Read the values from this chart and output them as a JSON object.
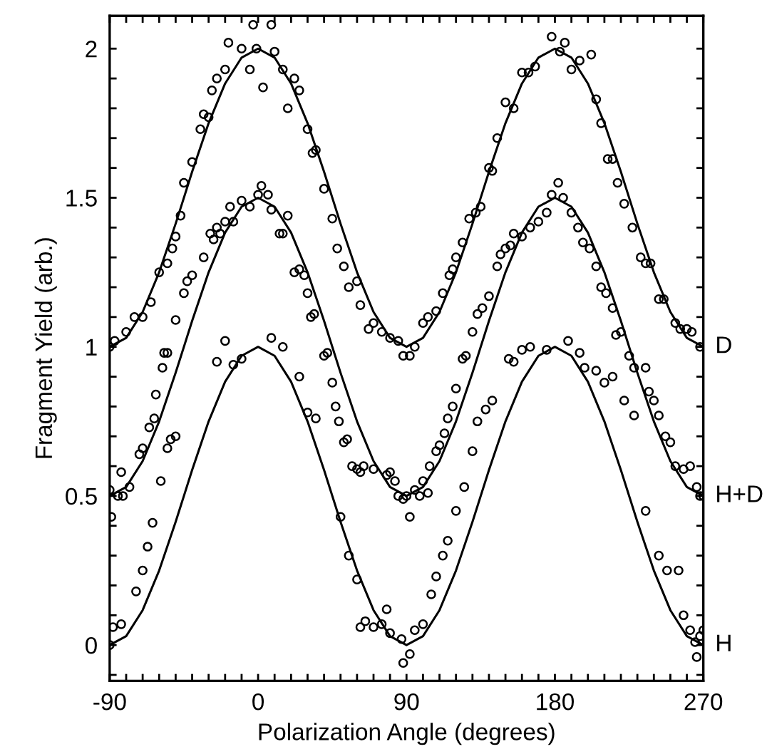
{
  "chart_data": {
    "type": "scatter",
    "xlabel": "Polarization Angle (degrees)",
    "ylabel": "Fragment Yield (arb.)",
    "xlim": [
      -90,
      270
    ],
    "ylim": [
      -0.12,
      2.11
    ],
    "xticks": [
      -90,
      {
        "value": -80,
        "label": null
      },
      {
        "value": -70,
        "label": null
      },
      {
        "value": -60,
        "label": null
      },
      {
        "value": -50,
        "label": null
      },
      {
        "value": -40,
        "label": null
      },
      {
        "value": -30,
        "label": null
      },
      {
        "value": -20,
        "label": null
      },
      {
        "value": -10,
        "label": null
      },
      0,
      {
        "value": 10,
        "label": null
      },
      {
        "value": 20,
        "label": null
      },
      {
        "value": 30,
        "label": null
      },
      {
        "value": 40,
        "label": null
      },
      {
        "value": 50,
        "label": null
      },
      {
        "value": 60,
        "label": null
      },
      {
        "value": 70,
        "label": null
      },
      {
        "value": 80,
        "label": null
      },
      90,
      {
        "value": 100,
        "label": null
      },
      {
        "value": 110,
        "label": null
      },
      {
        "value": 120,
        "label": null
      },
      {
        "value": 130,
        "label": null
      },
      {
        "value": 140,
        "label": null
      },
      {
        "value": 150,
        "label": null
      },
      {
        "value": 160,
        "label": null
      },
      {
        "value": 170,
        "label": null
      },
      180,
      {
        "value": 190,
        "label": null
      },
      {
        "value": 200,
        "label": null
      },
      {
        "value": 210,
        "label": null
      },
      {
        "value": 220,
        "label": null
      },
      {
        "value": 230,
        "label": null
      },
      {
        "value": 240,
        "label": null
      },
      {
        "value": 250,
        "label": null
      },
      {
        "value": 260,
        "label": null
      },
      270
    ],
    "yticks": [
      {
        "value": -0.1,
        "label": null
      },
      0,
      {
        "value": 0.1,
        "label": null
      },
      {
        "value": 0.2,
        "label": null
      },
      {
        "value": 0.3,
        "label": null
      },
      {
        "value": 0.4,
        "label": null
      },
      0.5,
      {
        "value": 0.6,
        "label": null
      },
      {
        "value": 0.7,
        "label": null
      },
      {
        "value": 0.8,
        "label": null
      },
      {
        "value": 0.9,
        "label": null
      },
      1,
      {
        "value": 1.1,
        "label": null
      },
      {
        "value": 1.2,
        "label": null
      },
      {
        "value": 1.3,
        "label": null
      },
      {
        "value": 1.4,
        "label": null
      },
      1.5,
      {
        "value": 1.6,
        "label": null
      },
      {
        "value": 1.7,
        "label": null
      },
      {
        "value": 1.8,
        "label": null
      },
      {
        "value": 1.9,
        "label": null
      },
      2
    ],
    "grid": false,
    "legend": "right",
    "marker": "circle",
    "series": [
      {
        "color": "#000000",
        "x": [
          -90,
          -87,
          -80,
          -75,
          -70,
          -65,
          -60,
          -55,
          -52,
          -50,
          -47,
          -45,
          -40,
          -35,
          -33,
          -30,
          -28,
          -25,
          -20,
          -18,
          -10,
          -5,
          -3,
          -1,
          3,
          8,
          10,
          15,
          18,
          22,
          25,
          30,
          33,
          35,
          40,
          45,
          48,
          52,
          55,
          60,
          62,
          67,
          70,
          75,
          80,
          85,
          88,
          92,
          95,
          100,
          103,
          108,
          112,
          116,
          118,
          120,
          124,
          128,
          132,
          135,
          140,
          142,
          145,
          150,
          155,
          160,
          164,
          168,
          178,
          183,
          186,
          190,
          195,
          202,
          205,
          208,
          212,
          215,
          218,
          222,
          227,
          232,
          235,
          238,
          243,
          246,
          253,
          256,
          260,
          263,
          268
        ],
        "values": [
          1.0,
          1.02,
          1.05,
          1.1,
          1.1,
          1.15,
          1.25,
          1.28,
          1.33,
          1.37,
          1.44,
          1.55,
          1.62,
          1.73,
          1.78,
          1.77,
          1.86,
          1.9,
          1.93,
          2.02,
          2.0,
          1.93,
          2.08,
          2.0,
          1.87,
          2.08,
          1.99,
          1.93,
          1.8,
          1.9,
          1.86,
          1.73,
          1.65,
          1.66,
          1.53,
          1.43,
          1.33,
          1.27,
          1.2,
          1.22,
          1.14,
          1.06,
          1.08,
          1.05,
          1.03,
          1.02,
          0.97,
          0.97,
          1.0,
          1.08,
          1.1,
          1.12,
          1.18,
          1.24,
          1.26,
          1.3,
          1.35,
          1.43,
          1.45,
          1.47,
          1.6,
          1.59,
          1.7,
          1.82,
          1.8,
          1.92,
          1.92,
          1.94,
          2.04,
          1.99,
          2.02,
          1.93,
          1.96,
          1.98,
          1.83,
          1.75,
          1.63,
          1.63,
          1.55,
          1.48,
          1.4,
          1.3,
          1.28,
          1.28,
          1.16,
          1.16,
          1.08,
          1.06,
          1.06,
          1.05,
          1.0
        ]
      },
      {
        "color": "#000000",
        "x": [
          -90,
          -89,
          -85,
          -83,
          -82,
          -78,
          -72,
          -70,
          -66,
          -63,
          -62,
          -58,
          -57,
          -55,
          -50,
          -45,
          -43,
          -40,
          -33,
          -29,
          -27,
          -25,
          -23,
          -20,
          -17,
          -15,
          -10,
          -5,
          0,
          2,
          6,
          8,
          13,
          15,
          18,
          22,
          25,
          28,
          30,
          32,
          34,
          40,
          42,
          45,
          47,
          49,
          52,
          54,
          57,
          60,
          62,
          64,
          70,
          78,
          80,
          83,
          85,
          88,
          90,
          92,
          95,
          98,
          100,
          103,
          104,
          108,
          110,
          113,
          115,
          118,
          120,
          124,
          126,
          130,
          133,
          136,
          140,
          145,
          147,
          150,
          153,
          155,
          160,
          165,
          170,
          175,
          178,
          182,
          185,
          190,
          194,
          197,
          201,
          205,
          208,
          211,
          215,
          217,
          220,
          225,
          228,
          235,
          237,
          240,
          243,
          247,
          250,
          253,
          258,
          262,
          266,
          268,
          270
        ],
        "values": [
          0.52,
          0.43,
          0.5,
          0.58,
          0.5,
          0.53,
          0.64,
          0.66,
          0.73,
          0.76,
          0.84,
          0.93,
          0.98,
          0.98,
          1.09,
          1.18,
          1.22,
          1.24,
          1.3,
          1.38,
          1.36,
          1.4,
          1.38,
          1.42,
          1.47,
          1.42,
          1.49,
          1.47,
          1.51,
          1.54,
          1.51,
          1.46,
          1.38,
          1.38,
          1.44,
          1.25,
          1.26,
          1.24,
          1.18,
          1.1,
          1.11,
          0.97,
          0.98,
          0.88,
          0.8,
          0.75,
          0.68,
          0.69,
          0.6,
          0.59,
          0.58,
          0.6,
          0.59,
          0.57,
          0.58,
          0.55,
          0.5,
          0.49,
          0.5,
          0.43,
          0.52,
          0.5,
          0.55,
          0.51,
          0.6,
          0.65,
          0.67,
          0.71,
          0.76,
          0.8,
          0.86,
          0.96,
          0.97,
          1.05,
          1.11,
          1.13,
          1.17,
          1.27,
          1.31,
          1.33,
          1.34,
          1.38,
          1.37,
          1.4,
          1.42,
          1.45,
          1.51,
          1.55,
          1.5,
          1.45,
          1.4,
          1.35,
          1.33,
          1.27,
          1.2,
          1.18,
          1.13,
          1.04,
          1.05,
          0.97,
          0.93,
          0.93,
          0.85,
          0.82,
          0.77,
          0.7,
          0.68,
          0.6,
          0.59,
          0.6,
          0.53,
          0.5,
          0.5
        ]
      },
      {
        "color": "#000000",
        "x": [
          -90,
          -88,
          -83,
          -74,
          -70,
          -67,
          -64,
          -59,
          -55,
          -53,
          -50,
          -25,
          -20,
          -15,
          -10,
          8,
          15,
          25,
          30,
          35,
          50,
          55,
          60,
          62,
          65,
          70,
          75,
          78,
          80,
          87,
          88,
          92,
          95,
          100,
          105,
          108,
          112,
          115,
          120,
          125,
          130,
          133,
          138,
          142,
          152,
          155,
          160,
          165,
          175,
          188,
          195,
          198,
          205,
          210,
          215,
          222,
          228,
          235,
          243,
          248,
          255,
          258,
          262,
          265,
          266,
          268,
          270
        ],
        "values": [
          0.0,
          0.06,
          0.07,
          0.18,
          0.25,
          0.33,
          0.41,
          0.55,
          0.66,
          0.69,
          0.7,
          0.95,
          1.02,
          0.94,
          0.96,
          1.03,
          1.0,
          0.9,
          0.78,
          0.76,
          0.43,
          0.3,
          0.22,
          0.06,
          0.08,
          0.06,
          0.07,
          0.12,
          0.04,
          0.02,
          -0.06,
          -0.03,
          0.05,
          0.07,
          0.17,
          0.23,
          0.3,
          0.35,
          0.45,
          0.53,
          0.65,
          0.75,
          0.79,
          0.82,
          0.96,
          0.95,
          0.99,
          1.0,
          0.99,
          1.02,
          0.98,
          0.93,
          0.92,
          0.88,
          0.9,
          0.82,
          0.77,
          0.45,
          0.3,
          0.25,
          0.25,
          0.1,
          0.05,
          0.01,
          -0.04,
          0.03,
          0.05
        ]
      },
      {
        "type": "line",
        "name": "D",
        "color": "#000000",
        "marker": "none",
        "x": [
          -90,
          -80,
          -70,
          -60,
          -50,
          -40,
          -30,
          -20,
          -10,
          0,
          10,
          20,
          30,
          40,
          50,
          60,
          70,
          80,
          90,
          100,
          110,
          120,
          130,
          140,
          150,
          160,
          170,
          180,
          190,
          200,
          210,
          220,
          230,
          240,
          250,
          260,
          270
        ],
        "values": [
          1.0,
          1.03,
          1.117,
          1.25,
          1.413,
          1.587,
          1.75,
          1.883,
          1.97,
          2.0,
          1.97,
          1.883,
          1.75,
          1.587,
          1.413,
          1.25,
          1.117,
          1.03,
          1.0,
          1.03,
          1.117,
          1.25,
          1.413,
          1.587,
          1.75,
          1.883,
          1.97,
          2.0,
          1.97,
          1.883,
          1.75,
          1.587,
          1.413,
          1.25,
          1.117,
          1.03,
          1.0
        ]
      },
      {
        "type": "line",
        "name": "H+D",
        "color": "#000000",
        "marker": "none",
        "x": [
          -90,
          -80,
          -70,
          -60,
          -50,
          -40,
          -30,
          -20,
          -10,
          0,
          10,
          20,
          30,
          40,
          50,
          60,
          70,
          80,
          90,
          100,
          110,
          120,
          130,
          140,
          150,
          160,
          170,
          180,
          190,
          200,
          210,
          220,
          230,
          240,
          250,
          260,
          270
        ],
        "values": [
          0.5,
          0.53,
          0.617,
          0.75,
          0.913,
          1.087,
          1.25,
          1.383,
          1.47,
          1.5,
          1.47,
          1.383,
          1.25,
          1.087,
          0.913,
          0.75,
          0.617,
          0.53,
          0.5,
          0.53,
          0.617,
          0.75,
          0.913,
          1.087,
          1.25,
          1.383,
          1.47,
          1.5,
          1.47,
          1.383,
          1.25,
          1.087,
          0.913,
          0.75,
          0.617,
          0.53,
          0.5
        ]
      },
      {
        "type": "line",
        "name": "H",
        "color": "#000000",
        "marker": "none",
        "x": [
          -90,
          -80,
          -70,
          -60,
          -50,
          -40,
          -30,
          -20,
          -10,
          0,
          10,
          20,
          30,
          40,
          50,
          60,
          70,
          80,
          90,
          100,
          110,
          120,
          130,
          140,
          150,
          160,
          170,
          180,
          190,
          200,
          210,
          220,
          230,
          240,
          250,
          260,
          270
        ],
        "values": [
          0.0,
          0.03,
          0.117,
          0.25,
          0.413,
          0.587,
          0.75,
          0.883,
          0.97,
          1.0,
          0.97,
          0.883,
          0.75,
          0.587,
          0.413,
          0.25,
          0.117,
          0.03,
          0.0,
          0.03,
          0.117,
          0.25,
          0.413,
          0.587,
          0.75,
          0.883,
          0.97,
          1.0,
          0.97,
          0.883,
          0.75,
          0.587,
          0.413,
          0.25,
          0.117,
          0.03,
          0.0
        ]
      }
    ]
  }
}
